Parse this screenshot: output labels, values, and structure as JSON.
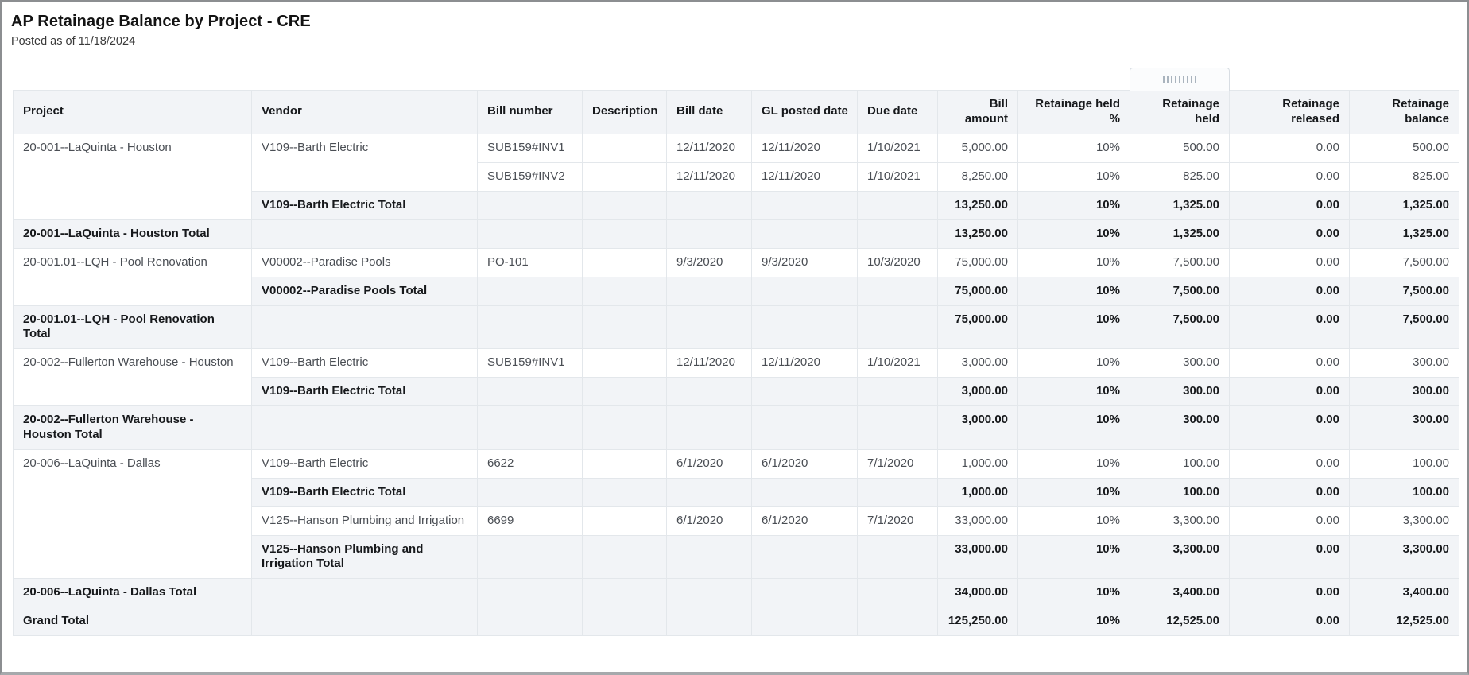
{
  "report": {
    "title": "AP Retainage Balance by Project - CRE",
    "subtitle": "Posted as of 11/18/2024"
  },
  "colors": {
    "header_row_bg": "#f2f4f7",
    "total_row_bg": "#f2f4f7",
    "detail_row_bg": "#ffffff",
    "grid_border": "#e3e7eb",
    "detail_text": "#4a4e54",
    "strong_text": "#17191c",
    "frame_border": "#8c8e91",
    "bottom_bar": "#a6a9ac",
    "handle_border": "#d8dde3",
    "handle_grip": "#aab4be"
  },
  "column_handle": {
    "icon": "grip-dots-icon",
    "attached_column": "retainage_held"
  },
  "table": {
    "columns": [
      {
        "key": "project",
        "label": "Project",
        "align": "left"
      },
      {
        "key": "vendor",
        "label": "Vendor",
        "align": "left"
      },
      {
        "key": "bill_number",
        "label": "Bill number",
        "align": "left"
      },
      {
        "key": "description",
        "label": "Description",
        "align": "left"
      },
      {
        "key": "bill_date",
        "label": "Bill date",
        "align": "left"
      },
      {
        "key": "gl_posted_date",
        "label": "GL posted date",
        "align": "left"
      },
      {
        "key": "due_date",
        "label": "Due date",
        "align": "left"
      },
      {
        "key": "bill_amount",
        "label": "Bill amount",
        "align": "right"
      },
      {
        "key": "retainage_held_pct",
        "label": "Retainage held %",
        "align": "right"
      },
      {
        "key": "retainage_held",
        "label": "Retainage held",
        "align": "right"
      },
      {
        "key": "retainage_released",
        "label": "Retainage released",
        "align": "right"
      },
      {
        "key": "retainage_balance",
        "label": "Retainage balance",
        "align": "right"
      }
    ],
    "rows": [
      {
        "type": "detail",
        "cells": [
          {
            "col": "project",
            "text": "20-001--LaQuinta - Houston",
            "rowspan": 3
          },
          {
            "col": "vendor",
            "text": "V109--Barth Electric",
            "rowspan": 2
          },
          {
            "col": "bill_number",
            "text": "SUB159#INV1"
          },
          {
            "col": "description",
            "text": ""
          },
          {
            "col": "bill_date",
            "text": "12/11/2020"
          },
          {
            "col": "gl_posted_date",
            "text": "12/11/2020"
          },
          {
            "col": "due_date",
            "text": "1/10/2021"
          },
          {
            "col": "bill_amount",
            "text": "5,000.00"
          },
          {
            "col": "retainage_held_pct",
            "text": "10%"
          },
          {
            "col": "retainage_held",
            "text": "500.00"
          },
          {
            "col": "retainage_released",
            "text": "0.00"
          },
          {
            "col": "retainage_balance",
            "text": "500.00"
          }
        ]
      },
      {
        "type": "detail",
        "cells": [
          {
            "col": "bill_number",
            "text": "SUB159#INV2"
          },
          {
            "col": "description",
            "text": ""
          },
          {
            "col": "bill_date",
            "text": "12/11/2020"
          },
          {
            "col": "gl_posted_date",
            "text": "12/11/2020"
          },
          {
            "col": "due_date",
            "text": "1/10/2021"
          },
          {
            "col": "bill_amount",
            "text": "8,250.00"
          },
          {
            "col": "retainage_held_pct",
            "text": "10%"
          },
          {
            "col": "retainage_held",
            "text": "825.00"
          },
          {
            "col": "retainage_released",
            "text": "0.00"
          },
          {
            "col": "retainage_balance",
            "text": "825.00"
          }
        ]
      },
      {
        "type": "subtotal",
        "cells": [
          {
            "col": "vendor",
            "text": "V109--Barth Electric Total"
          },
          {
            "col": "bill_number",
            "text": ""
          },
          {
            "col": "description",
            "text": ""
          },
          {
            "col": "bill_date",
            "text": ""
          },
          {
            "col": "gl_posted_date",
            "text": ""
          },
          {
            "col": "due_date",
            "text": ""
          },
          {
            "col": "bill_amount",
            "text": "13,250.00"
          },
          {
            "col": "retainage_held_pct",
            "text": "10%"
          },
          {
            "col": "retainage_held",
            "text": "1,325.00"
          },
          {
            "col": "retainage_released",
            "text": "0.00"
          },
          {
            "col": "retainage_balance",
            "text": "1,325.00"
          }
        ]
      },
      {
        "type": "subtotal",
        "cells": [
          {
            "col": "project",
            "text": "20-001--LaQuinta - Houston Total"
          },
          {
            "col": "vendor",
            "text": ""
          },
          {
            "col": "bill_number",
            "text": ""
          },
          {
            "col": "description",
            "text": ""
          },
          {
            "col": "bill_date",
            "text": ""
          },
          {
            "col": "gl_posted_date",
            "text": ""
          },
          {
            "col": "due_date",
            "text": ""
          },
          {
            "col": "bill_amount",
            "text": "13,250.00"
          },
          {
            "col": "retainage_held_pct",
            "text": "10%"
          },
          {
            "col": "retainage_held",
            "text": "1,325.00"
          },
          {
            "col": "retainage_released",
            "text": "0.00"
          },
          {
            "col": "retainage_balance",
            "text": "1,325.00"
          }
        ]
      },
      {
        "type": "detail",
        "cells": [
          {
            "col": "project",
            "text": "20-001.01--LQH - Pool Renovation",
            "rowspan": 2
          },
          {
            "col": "vendor",
            "text": "V00002--Paradise Pools"
          },
          {
            "col": "bill_number",
            "text": "PO-101"
          },
          {
            "col": "description",
            "text": ""
          },
          {
            "col": "bill_date",
            "text": "9/3/2020"
          },
          {
            "col": "gl_posted_date",
            "text": "9/3/2020"
          },
          {
            "col": "due_date",
            "text": "10/3/2020"
          },
          {
            "col": "bill_amount",
            "text": "75,000.00"
          },
          {
            "col": "retainage_held_pct",
            "text": "10%"
          },
          {
            "col": "retainage_held",
            "text": "7,500.00"
          },
          {
            "col": "retainage_released",
            "text": "0.00"
          },
          {
            "col": "retainage_balance",
            "text": "7,500.00"
          }
        ]
      },
      {
        "type": "subtotal",
        "cells": [
          {
            "col": "vendor",
            "text": "V00002--Paradise Pools Total"
          },
          {
            "col": "bill_number",
            "text": ""
          },
          {
            "col": "description",
            "text": ""
          },
          {
            "col": "bill_date",
            "text": ""
          },
          {
            "col": "gl_posted_date",
            "text": ""
          },
          {
            "col": "due_date",
            "text": ""
          },
          {
            "col": "bill_amount",
            "text": "75,000.00"
          },
          {
            "col": "retainage_held_pct",
            "text": "10%"
          },
          {
            "col": "retainage_held",
            "text": "7,500.00"
          },
          {
            "col": "retainage_released",
            "text": "0.00"
          },
          {
            "col": "retainage_balance",
            "text": "7,500.00"
          }
        ]
      },
      {
        "type": "subtotal",
        "cells": [
          {
            "col": "project",
            "text": "20-001.01--LQH - Pool Renovation Total"
          },
          {
            "col": "vendor",
            "text": ""
          },
          {
            "col": "bill_number",
            "text": ""
          },
          {
            "col": "description",
            "text": ""
          },
          {
            "col": "bill_date",
            "text": ""
          },
          {
            "col": "gl_posted_date",
            "text": ""
          },
          {
            "col": "due_date",
            "text": ""
          },
          {
            "col": "bill_amount",
            "text": "75,000.00"
          },
          {
            "col": "retainage_held_pct",
            "text": "10%"
          },
          {
            "col": "retainage_held",
            "text": "7,500.00"
          },
          {
            "col": "retainage_released",
            "text": "0.00"
          },
          {
            "col": "retainage_balance",
            "text": "7,500.00"
          }
        ]
      },
      {
        "type": "detail",
        "cells": [
          {
            "col": "project",
            "text": "20-002--Fullerton Warehouse - Houston",
            "rowspan": 2
          },
          {
            "col": "vendor",
            "text": "V109--Barth Electric"
          },
          {
            "col": "bill_number",
            "text": "SUB159#INV1"
          },
          {
            "col": "description",
            "text": ""
          },
          {
            "col": "bill_date",
            "text": "12/11/2020"
          },
          {
            "col": "gl_posted_date",
            "text": "12/11/2020"
          },
          {
            "col": "due_date",
            "text": "1/10/2021"
          },
          {
            "col": "bill_amount",
            "text": "3,000.00"
          },
          {
            "col": "retainage_held_pct",
            "text": "10%"
          },
          {
            "col": "retainage_held",
            "text": "300.00"
          },
          {
            "col": "retainage_released",
            "text": "0.00"
          },
          {
            "col": "retainage_balance",
            "text": "300.00"
          }
        ]
      },
      {
        "type": "subtotal",
        "cells": [
          {
            "col": "vendor",
            "text": "V109--Barth Electric Total"
          },
          {
            "col": "bill_number",
            "text": ""
          },
          {
            "col": "description",
            "text": ""
          },
          {
            "col": "bill_date",
            "text": ""
          },
          {
            "col": "gl_posted_date",
            "text": ""
          },
          {
            "col": "due_date",
            "text": ""
          },
          {
            "col": "bill_amount",
            "text": "3,000.00"
          },
          {
            "col": "retainage_held_pct",
            "text": "10%"
          },
          {
            "col": "retainage_held",
            "text": "300.00"
          },
          {
            "col": "retainage_released",
            "text": "0.00"
          },
          {
            "col": "retainage_balance",
            "text": "300.00"
          }
        ]
      },
      {
        "type": "subtotal",
        "cells": [
          {
            "col": "project",
            "text": "20-002--Fullerton Warehouse - Houston Total"
          },
          {
            "col": "vendor",
            "text": ""
          },
          {
            "col": "bill_number",
            "text": ""
          },
          {
            "col": "description",
            "text": ""
          },
          {
            "col": "bill_date",
            "text": ""
          },
          {
            "col": "gl_posted_date",
            "text": ""
          },
          {
            "col": "due_date",
            "text": ""
          },
          {
            "col": "bill_amount",
            "text": "3,000.00"
          },
          {
            "col": "retainage_held_pct",
            "text": "10%"
          },
          {
            "col": "retainage_held",
            "text": "300.00"
          },
          {
            "col": "retainage_released",
            "text": "0.00"
          },
          {
            "col": "retainage_balance",
            "text": "300.00"
          }
        ]
      },
      {
        "type": "detail",
        "cells": [
          {
            "col": "project",
            "text": "20-006--LaQuinta - Dallas",
            "rowspan": 4
          },
          {
            "col": "vendor",
            "text": "V109--Barth Electric"
          },
          {
            "col": "bill_number",
            "text": "6622"
          },
          {
            "col": "description",
            "text": ""
          },
          {
            "col": "bill_date",
            "text": "6/1/2020"
          },
          {
            "col": "gl_posted_date",
            "text": "6/1/2020"
          },
          {
            "col": "due_date",
            "text": "7/1/2020"
          },
          {
            "col": "bill_amount",
            "text": "1,000.00"
          },
          {
            "col": "retainage_held_pct",
            "text": "10%"
          },
          {
            "col": "retainage_held",
            "text": "100.00"
          },
          {
            "col": "retainage_released",
            "text": "0.00"
          },
          {
            "col": "retainage_balance",
            "text": "100.00"
          }
        ]
      },
      {
        "type": "subtotal",
        "cells": [
          {
            "col": "vendor",
            "text": "V109--Barth Electric Total"
          },
          {
            "col": "bill_number",
            "text": ""
          },
          {
            "col": "description",
            "text": ""
          },
          {
            "col": "bill_date",
            "text": ""
          },
          {
            "col": "gl_posted_date",
            "text": ""
          },
          {
            "col": "due_date",
            "text": ""
          },
          {
            "col": "bill_amount",
            "text": "1,000.00"
          },
          {
            "col": "retainage_held_pct",
            "text": "10%"
          },
          {
            "col": "retainage_held",
            "text": "100.00"
          },
          {
            "col": "retainage_released",
            "text": "0.00"
          },
          {
            "col": "retainage_balance",
            "text": "100.00"
          }
        ]
      },
      {
        "type": "detail",
        "cells": [
          {
            "col": "vendor",
            "text": "V125--Hanson Plumbing and Irrigation"
          },
          {
            "col": "bill_number",
            "text": "6699"
          },
          {
            "col": "description",
            "text": ""
          },
          {
            "col": "bill_date",
            "text": "6/1/2020"
          },
          {
            "col": "gl_posted_date",
            "text": "6/1/2020"
          },
          {
            "col": "due_date",
            "text": "7/1/2020"
          },
          {
            "col": "bill_amount",
            "text": "33,000.00"
          },
          {
            "col": "retainage_held_pct",
            "text": "10%"
          },
          {
            "col": "retainage_held",
            "text": "3,300.00"
          },
          {
            "col": "retainage_released",
            "text": "0.00"
          },
          {
            "col": "retainage_balance",
            "text": "3,300.00"
          }
        ]
      },
      {
        "type": "subtotal",
        "cells": [
          {
            "col": "vendor",
            "text": "V125--Hanson Plumbing and Irrigation Total"
          },
          {
            "col": "bill_number",
            "text": ""
          },
          {
            "col": "description",
            "text": ""
          },
          {
            "col": "bill_date",
            "text": ""
          },
          {
            "col": "gl_posted_date",
            "text": ""
          },
          {
            "col": "due_date",
            "text": ""
          },
          {
            "col": "bill_amount",
            "text": "33,000.00"
          },
          {
            "col": "retainage_held_pct",
            "text": "10%"
          },
          {
            "col": "retainage_held",
            "text": "3,300.00"
          },
          {
            "col": "retainage_released",
            "text": "0.00"
          },
          {
            "col": "retainage_balance",
            "text": "3,300.00"
          }
        ]
      },
      {
        "type": "subtotal",
        "cells": [
          {
            "col": "project",
            "text": "20-006--LaQuinta - Dallas Total"
          },
          {
            "col": "vendor",
            "text": ""
          },
          {
            "col": "bill_number",
            "text": ""
          },
          {
            "col": "description",
            "text": ""
          },
          {
            "col": "bill_date",
            "text": ""
          },
          {
            "col": "gl_posted_date",
            "text": ""
          },
          {
            "col": "due_date",
            "text": ""
          },
          {
            "col": "bill_amount",
            "text": "34,000.00"
          },
          {
            "col": "retainage_held_pct",
            "text": "10%"
          },
          {
            "col": "retainage_held",
            "text": "3,400.00"
          },
          {
            "col": "retainage_released",
            "text": "0.00"
          },
          {
            "col": "retainage_balance",
            "text": "3,400.00"
          }
        ]
      },
      {
        "type": "grand",
        "cells": [
          {
            "col": "project",
            "text": "Grand Total"
          },
          {
            "col": "vendor",
            "text": ""
          },
          {
            "col": "bill_number",
            "text": ""
          },
          {
            "col": "description",
            "text": ""
          },
          {
            "col": "bill_date",
            "text": ""
          },
          {
            "col": "gl_posted_date",
            "text": ""
          },
          {
            "col": "due_date",
            "text": ""
          },
          {
            "col": "bill_amount",
            "text": "125,250.00"
          },
          {
            "col": "retainage_held_pct",
            "text": "10%"
          },
          {
            "col": "retainage_held",
            "text": "12,525.00"
          },
          {
            "col": "retainage_released",
            "text": "0.00"
          },
          {
            "col": "retainage_balance",
            "text": "12,525.00"
          }
        ]
      }
    ]
  }
}
